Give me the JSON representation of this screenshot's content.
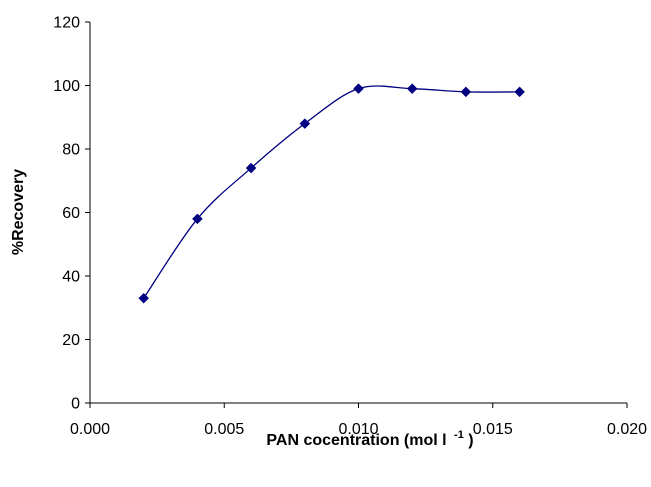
{
  "chart_data": {
    "type": "line",
    "title": "",
    "x": [
      0.002,
      0.004,
      0.006,
      0.008,
      0.01,
      0.012,
      0.014,
      0.016
    ],
    "series": [
      {
        "values": [
          33,
          58,
          74,
          88,
          99,
          99,
          98,
          98
        ],
        "color": "#000080"
      }
    ],
    "xlim": [
      0,
      0.02
    ],
    "ylim": [
      0,
      120
    ],
    "x_ticks": [
      "0.000",
      "0.005",
      "0.010",
      "0.015",
      "0.020"
    ],
    "y_ticks": [
      "0",
      "20",
      "40",
      "60",
      "80",
      "100",
      "120"
    ],
    "xlabel_main": "PAN cocentration (mol l",
    "xlabel_sup": "-1",
    "xlabel_end": ")",
    "ylabel": "%Recovery",
    "marker": "diamond",
    "smooth": true,
    "grid": false,
    "legend": "none"
  }
}
